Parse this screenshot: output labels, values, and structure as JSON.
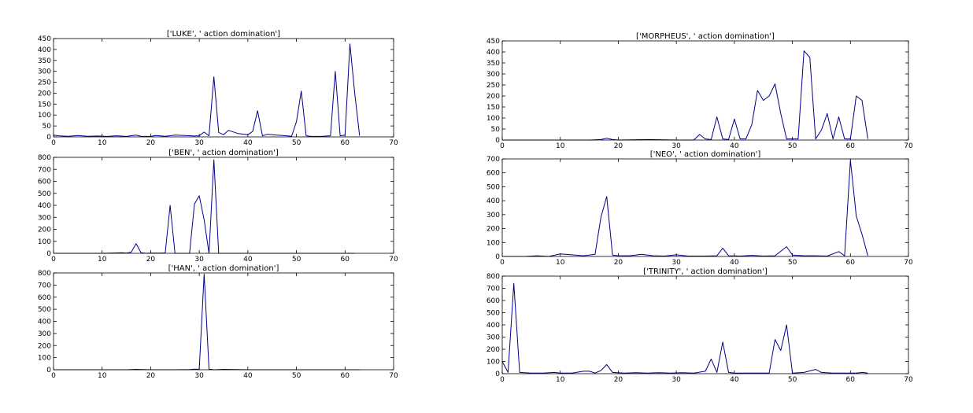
{
  "chart_data": [
    {
      "type": "line",
      "title": "['LUKE', ' action domination']",
      "xlim": [
        0,
        70
      ],
      "ylim": [
        0,
        450
      ],
      "xticks": [
        "0",
        "10",
        "20",
        "30",
        "40",
        "50",
        "60",
        "70"
      ],
      "yticks": [
        "0",
        "50",
        "100",
        "150",
        "200",
        "250",
        "300",
        "350",
        "400",
        "450"
      ],
      "grid": false,
      "color": "#00008b",
      "x": [
        0,
        1,
        3,
        5,
        7,
        9,
        11,
        13,
        15,
        17,
        18,
        20,
        21,
        23,
        25,
        27,
        29,
        30,
        31,
        32,
        33,
        34,
        35,
        36,
        38,
        40,
        41,
        42,
        43,
        44,
        46,
        48,
        49,
        50,
        51,
        52,
        53,
        55,
        57,
        58,
        59,
        60,
        61,
        62,
        63
      ],
      "y": [
        8,
        5,
        3,
        6,
        3,
        4,
        2,
        5,
        2,
        8,
        3,
        2,
        6,
        3,
        8,
        6,
        4,
        5,
        22,
        5,
        275,
        20,
        10,
        30,
        15,
        10,
        25,
        120,
        5,
        12,
        8,
        5,
        3,
        70,
        210,
        5,
        2,
        2,
        5,
        300,
        5,
        8,
        425,
        200,
        5
      ]
    },
    {
      "type": "line",
      "title": "['BEN', ' action domination']",
      "xlim": [
        0,
        70
      ],
      "ylim": [
        0,
        800
      ],
      "xticks": [
        "0",
        "10",
        "20",
        "30",
        "40",
        "50",
        "60",
        "70"
      ],
      "yticks": [
        "0",
        "100",
        "200",
        "300",
        "400",
        "500",
        "600",
        "700",
        "800"
      ],
      "grid": false,
      "color": "#00008b",
      "x": [
        0,
        5,
        10,
        13,
        14,
        15,
        16,
        17,
        18,
        19,
        20,
        22,
        23,
        24,
        25,
        26,
        27,
        28,
        29,
        30,
        31,
        32,
        33,
        34,
        35,
        40,
        45,
        50,
        55,
        60,
        62
      ],
      "y": [
        0,
        0,
        0,
        3,
        5,
        2,
        10,
        80,
        5,
        0,
        2,
        2,
        3,
        400,
        0,
        0,
        0,
        0,
        410,
        480,
        280,
        0,
        780,
        0,
        0,
        0,
        0,
        0,
        0,
        0,
        0
      ]
    },
    {
      "type": "line",
      "title": "['HAN', ' action domination']",
      "xlim": [
        0,
        70
      ],
      "ylim": [
        0,
        800
      ],
      "xticks": [
        "0",
        "10",
        "20",
        "30",
        "40",
        "50",
        "60",
        "70"
      ],
      "yticks": [
        "0",
        "100",
        "200",
        "300",
        "400",
        "500",
        "600",
        "700",
        "800"
      ],
      "grid": false,
      "color": "#00008b",
      "x": [
        0,
        5,
        10,
        15,
        17,
        20,
        25,
        28,
        29,
        30,
        31,
        32,
        33,
        35,
        40,
        45,
        50,
        55,
        60,
        63
      ],
      "y": [
        0,
        0,
        0,
        0,
        3,
        0,
        0,
        2,
        5,
        3,
        790,
        5,
        0,
        3,
        0,
        0,
        0,
        0,
        0,
        0
      ]
    },
    {
      "type": "line",
      "title": "['MORPHEUS', ' action domination']",
      "xlim": [
        0,
        70
      ],
      "ylim": [
        0,
        450
      ],
      "xticks": [
        "0",
        "10",
        "20",
        "30",
        "40",
        "50",
        "60",
        "70"
      ],
      "yticks": [
        "0",
        "50",
        "100",
        "150",
        "200",
        "250",
        "300",
        "350",
        "400",
        "450"
      ],
      "grid": false,
      "color": "#00008b",
      "x": [
        0,
        5,
        10,
        15,
        17,
        18,
        19,
        20,
        25,
        30,
        33,
        34,
        35,
        36,
        37,
        38,
        39,
        40,
        41,
        42,
        43,
        44,
        45,
        46,
        47,
        48,
        49,
        50,
        51,
        52,
        53,
        54,
        55,
        56,
        57,
        58,
        59,
        60,
        61,
        62,
        63
      ],
      "y": [
        0,
        0,
        0,
        0,
        2,
        8,
        2,
        0,
        2,
        0,
        0,
        25,
        5,
        2,
        105,
        5,
        2,
        95,
        5,
        5,
        70,
        225,
        180,
        200,
        255,
        120,
        5,
        5,
        5,
        405,
        375,
        5,
        45,
        120,
        5,
        105,
        5,
        5,
        200,
        180,
        5
      ]
    },
    {
      "type": "line",
      "title": "['NEO', ' action domination']",
      "xlim": [
        0,
        70
      ],
      "ylim": [
        0,
        700
      ],
      "xticks": [
        "0",
        "10",
        "20",
        "30",
        "40",
        "50",
        "60",
        "70"
      ],
      "yticks": [
        "0",
        "100",
        "200",
        "300",
        "400",
        "500",
        "600",
        "700"
      ],
      "grid": false,
      "color": "#00008b",
      "x": [
        0,
        4,
        6,
        8,
        10,
        12,
        14,
        16,
        17,
        18,
        19,
        20,
        22,
        24,
        26,
        28,
        30,
        32,
        35,
        37,
        38,
        39,
        41,
        43,
        45,
        47,
        49,
        50,
        52,
        54,
        56,
        58,
        59,
        60,
        61,
        62,
        63
      ],
      "y": [
        0,
        0,
        5,
        0,
        18,
        12,
        5,
        15,
        280,
        430,
        10,
        5,
        5,
        15,
        5,
        3,
        12,
        3,
        3,
        5,
        60,
        5,
        3,
        8,
        3,
        5,
        70,
        10,
        5,
        5,
        3,
        35,
        5,
        690,
        290,
        160,
        5
      ]
    },
    {
      "type": "line",
      "title": "['TRINITY', ' action domination']",
      "xlim": [
        0,
        70
      ],
      "ylim": [
        0,
        800
      ],
      "xticks": [
        "0",
        "10",
        "20",
        "30",
        "40",
        "50",
        "60",
        "70"
      ],
      "yticks": [
        "0",
        "100",
        "200",
        "300",
        "400",
        "500",
        "600",
        "700",
        "800"
      ],
      "grid": false,
      "color": "#00008b",
      "x": [
        0,
        1,
        2,
        3,
        5,
        7,
        9,
        10,
        12,
        14,
        15,
        16,
        17,
        18,
        19,
        21,
        23,
        25,
        27,
        29,
        31,
        33,
        35,
        36,
        37,
        38,
        39,
        40,
        42,
        44,
        46,
        47,
        48,
        49,
        50,
        52,
        54,
        55,
        57,
        59,
        61,
        62,
        63
      ],
      "y": [
        100,
        10,
        740,
        10,
        5,
        5,
        10,
        5,
        5,
        20,
        20,
        5,
        25,
        75,
        10,
        5,
        8,
        5,
        8,
        5,
        8,
        5,
        20,
        120,
        10,
        260,
        10,
        5,
        5,
        5,
        5,
        280,
        190,
        400,
        5,
        10,
        35,
        10,
        5,
        5,
        5,
        10,
        5
      ]
    }
  ]
}
